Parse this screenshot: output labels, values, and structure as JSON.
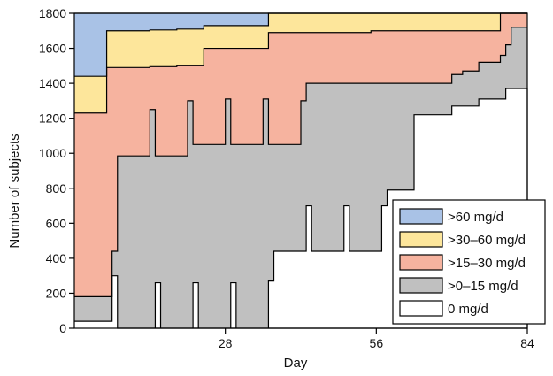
{
  "chart_data": {
    "type": "area",
    "title": "",
    "xlabel": "Day",
    "ylabel": "Number of subjects",
    "xlim": [
      0,
      84
    ],
    "ylim": [
      0,
      1800
    ],
    "xticks": [
      28,
      56,
      84
    ],
    "yticks": [
      0,
      200,
      400,
      600,
      800,
      1000,
      1200,
      1400,
      1600,
      1800
    ],
    "grid": false,
    "legend_position": "bottom-right",
    "series": [
      {
        "name": "0 mg/d",
        "color": "#ffffff",
        "boundary": [
          [
            0,
            40
          ],
          [
            7,
            40
          ],
          [
            7,
            300
          ],
          [
            8,
            300
          ],
          [
            8,
            0
          ],
          [
            84,
            0
          ]
        ]
      },
      {
        "name": ">0–15 mg/d",
        "color": "#c0c0c0",
        "boundary": [
          [
            0,
            180
          ],
          [
            7,
            180
          ],
          [
            7,
            440
          ],
          [
            8,
            440
          ],
          [
            8,
            985
          ],
          [
            14,
            985
          ],
          [
            14,
            1250
          ],
          [
            15,
            1250
          ],
          [
            15,
            985
          ],
          [
            21,
            985
          ],
          [
            21,
            1300
          ],
          [
            22,
            1300
          ],
          [
            22,
            1050
          ],
          [
            28,
            1050
          ],
          [
            28,
            1310
          ],
          [
            29,
            1310
          ],
          [
            29,
            1050
          ],
          [
            35,
            1050
          ],
          [
            35,
            1310
          ],
          [
            36,
            1310
          ],
          [
            36,
            1050
          ],
          [
            42,
            1050
          ],
          [
            42,
            1300
          ],
          [
            43,
            1300
          ],
          [
            43,
            1400
          ],
          [
            70,
            1400
          ],
          [
            70,
            1450
          ],
          [
            72,
            1450
          ],
          [
            72,
            1470
          ],
          [
            75,
            1470
          ],
          [
            75,
            1520
          ],
          [
            79,
            1520
          ],
          [
            79,
            1560
          ],
          [
            80,
            1560
          ],
          [
            80,
            1620
          ],
          [
            81,
            1620
          ],
          [
            81,
            1720
          ],
          [
            84,
            1720
          ]
        ]
      },
      {
        "name": ">15–30 mg/d",
        "color": "#f6b39f",
        "boundary": [
          [
            0,
            1230
          ],
          [
            6,
            1230
          ],
          [
            6,
            1490
          ],
          [
            14,
            1490
          ],
          [
            14,
            1495
          ],
          [
            19,
            1495
          ],
          [
            19,
            1500
          ],
          [
            24,
            1500
          ],
          [
            24,
            1600
          ],
          [
            36,
            1600
          ],
          [
            36,
            1690
          ],
          [
            55,
            1690
          ],
          [
            55,
            1700
          ],
          [
            79,
            1700
          ],
          [
            79,
            1800
          ],
          [
            84,
            1800
          ]
        ]
      },
      {
        "name": ">30–60 mg/d",
        "color": "#fde69b",
        "boundary": [
          [
            0,
            1440
          ],
          [
            6,
            1440
          ],
          [
            6,
            1700
          ],
          [
            14,
            1700
          ],
          [
            14,
            1705
          ],
          [
            19,
            1705
          ],
          [
            19,
            1710
          ],
          [
            24,
            1710
          ],
          [
            24,
            1730
          ],
          [
            36,
            1730
          ],
          [
            36,
            1800
          ],
          [
            84,
            1800
          ]
        ]
      },
      {
        "name": ">60 mg/d",
        "color": "#a9c2e6",
        "boundary": [
          [
            0,
            1800
          ],
          [
            84,
            1800
          ]
        ]
      }
    ],
    "white_notches": [
      [
        [
          15,
          0
        ],
        [
          15,
          260
        ],
        [
          16,
          260
        ],
        [
          16,
          0
        ]
      ],
      [
        [
          22,
          0
        ],
        [
          22,
          260
        ],
        [
          23,
          260
        ],
        [
          23,
          0
        ]
      ],
      [
        [
          29,
          0
        ],
        [
          29,
          260
        ],
        [
          30,
          260
        ],
        [
          30,
          0
        ]
      ],
      [
        [
          36,
          0
        ],
        [
          36,
          270
        ],
        [
          37,
          270
        ],
        [
          37,
          440
        ],
        [
          43,
          440
        ],
        [
          43,
          700
        ],
        [
          44,
          700
        ],
        [
          44,
          440
        ],
        [
          50,
          440
        ],
        [
          50,
          700
        ],
        [
          51,
          700
        ],
        [
          51,
          440
        ],
        [
          57,
          440
        ],
        [
          57,
          700
        ],
        [
          58,
          700
        ],
        [
          58,
          790
        ],
        [
          63,
          790
        ],
        [
          63,
          1220
        ],
        [
          70,
          1220
        ],
        [
          70,
          1270
        ],
        [
          75,
          1270
        ],
        [
          75,
          1310
        ],
        [
          80,
          1310
        ],
        [
          80,
          1370
        ],
        [
          84,
          1370
        ],
        [
          84,
          0
        ]
      ]
    ]
  }
}
